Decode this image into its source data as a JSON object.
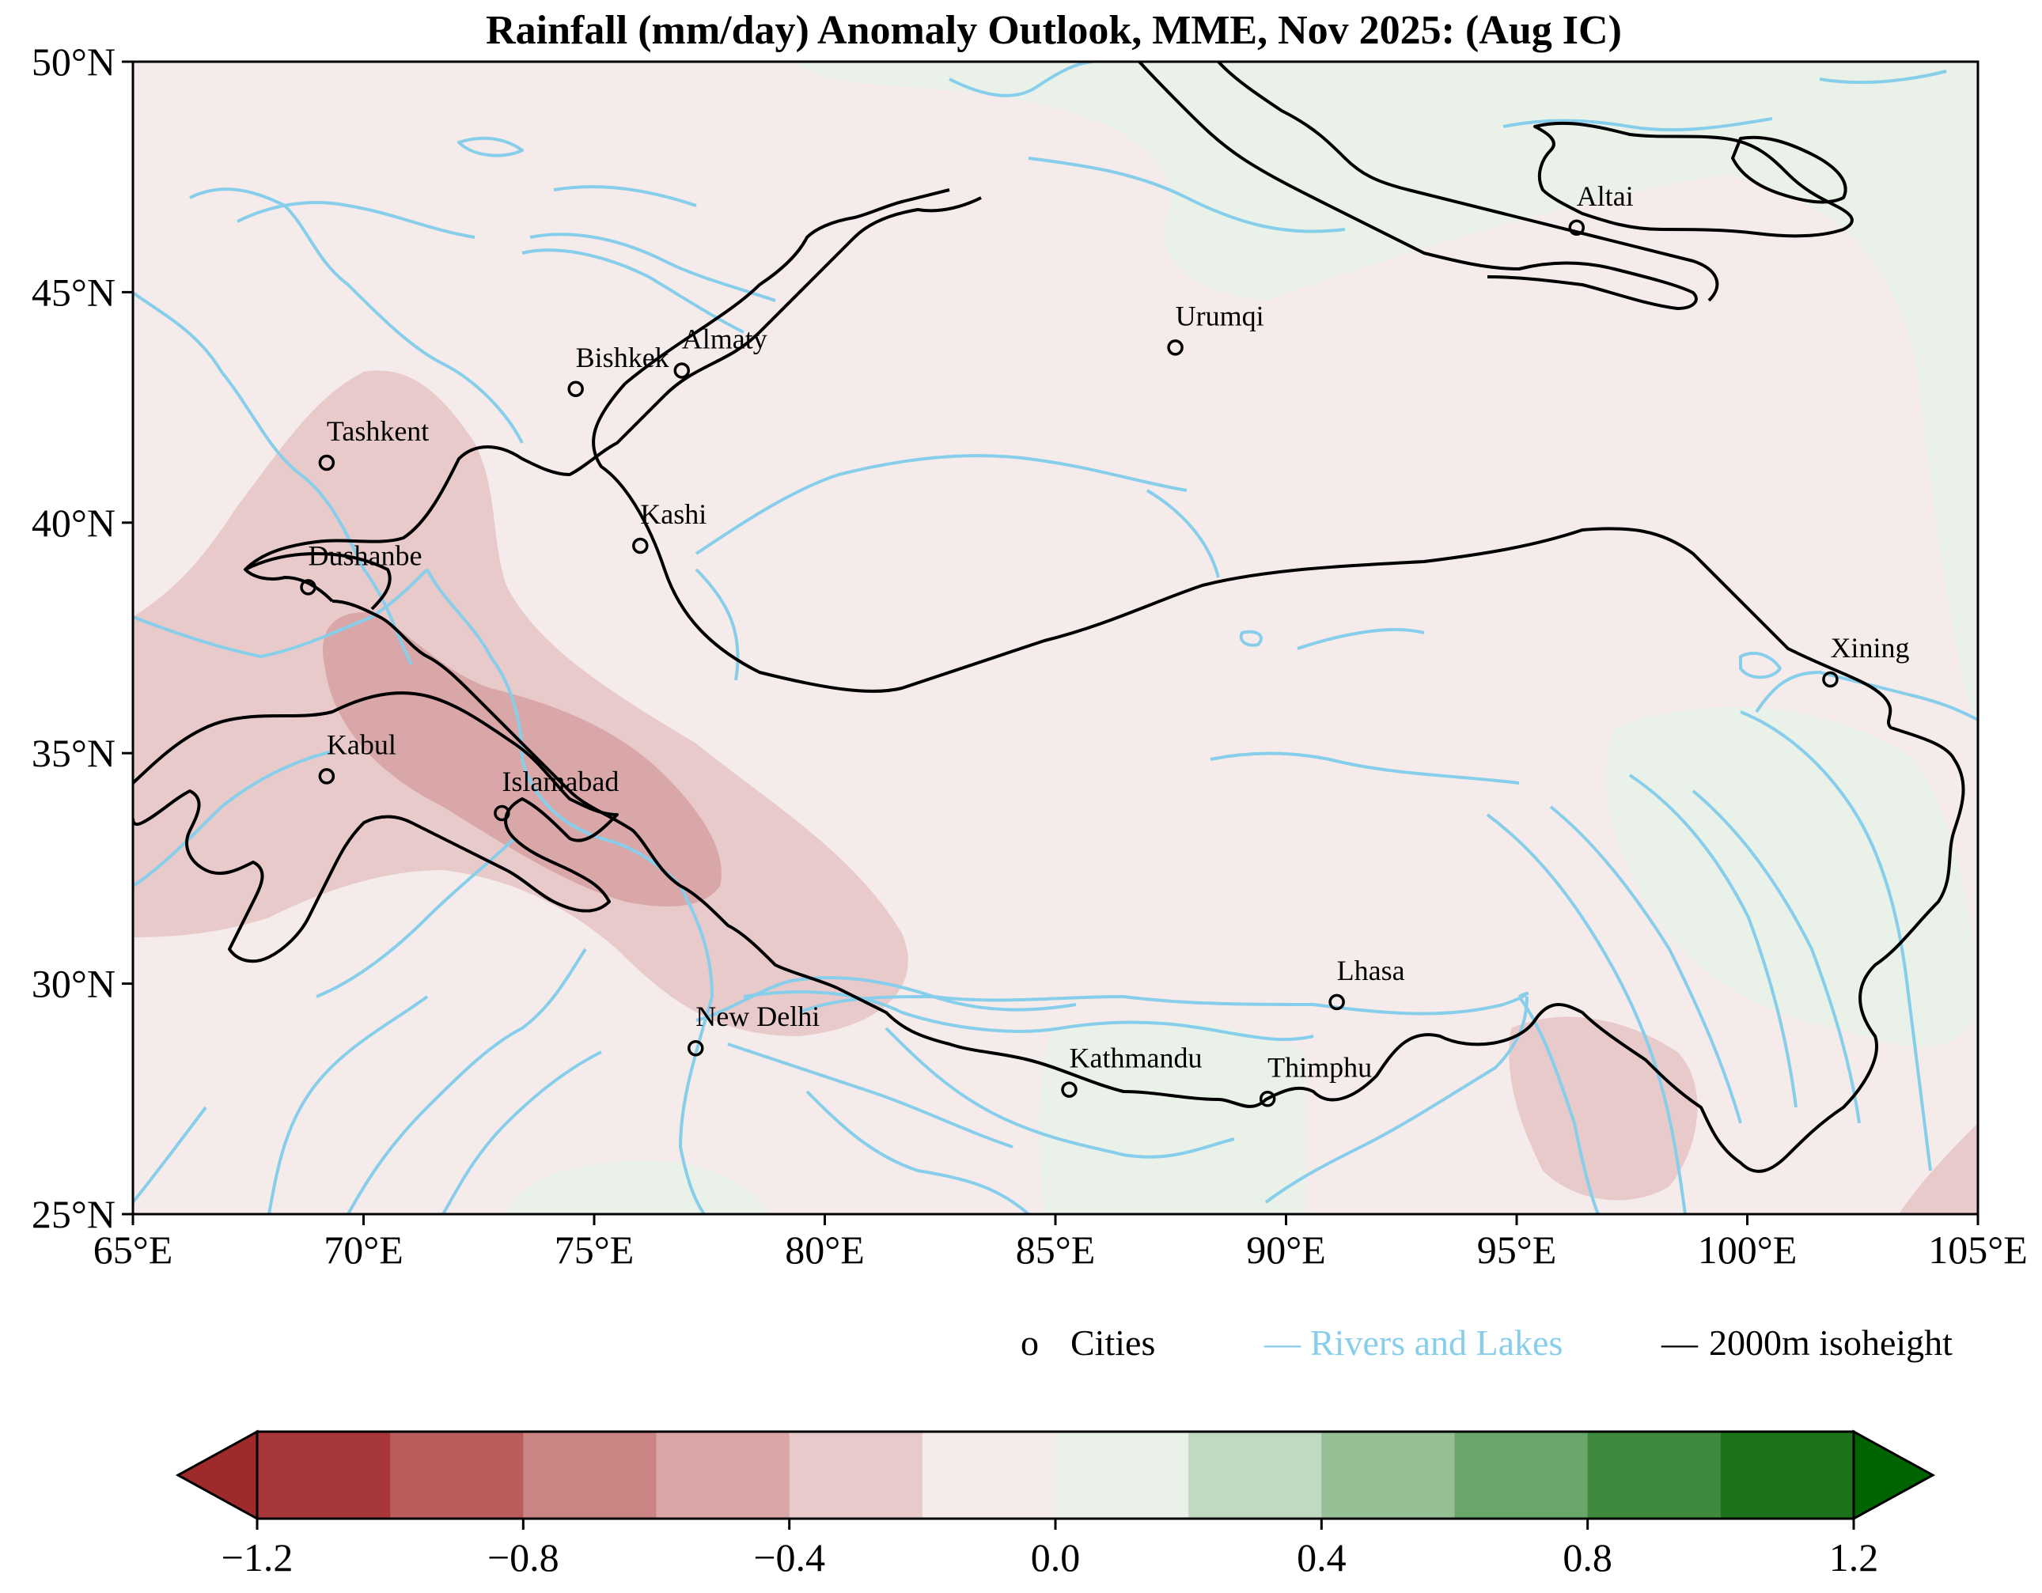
{
  "title": "Rainfall (mm/day) Anomaly Outlook, MME, Nov  2025:  (Aug IC)",
  "map": {
    "lon_range": [
      65,
      105
    ],
    "lat_range": [
      25,
      50
    ],
    "x_ticks": [
      "65°E",
      "70°E",
      "75°E",
      "80°E",
      "85°E",
      "90°E",
      "95°E",
      "100°E",
      "105°E"
    ],
    "y_ticks": [
      "25°N",
      "30°N",
      "35°N",
      "40°N",
      "45°N",
      "50°N"
    ],
    "background_color": "#f5ebeb",
    "cities": [
      {
        "name": "Altai",
        "lon": 96.3,
        "lat": 46.4
      },
      {
        "name": "Urumqi",
        "lon": 87.6,
        "lat": 43.8
      },
      {
        "name": "Almaty",
        "lon": 76.9,
        "lat": 43.3
      },
      {
        "name": "Bishkek",
        "lon": 74.6,
        "lat": 42.9
      },
      {
        "name": "Tashkent",
        "lon": 69.2,
        "lat": 41.3
      },
      {
        "name": "Kashi",
        "lon": 76.0,
        "lat": 39.5
      },
      {
        "name": "Dushanbe",
        "lon": 68.8,
        "lat": 38.6
      },
      {
        "name": "Xining",
        "lon": 101.8,
        "lat": 36.6
      },
      {
        "name": "Kabul",
        "lon": 69.2,
        "lat": 34.5
      },
      {
        "name": "Islamabad",
        "lon": 73.0,
        "lat": 33.7
      },
      {
        "name": "Lhasa",
        "lon": 91.1,
        "lat": 29.6
      },
      {
        "name": "New Delhi",
        "lon": 77.2,
        "lat": 28.6
      },
      {
        "name": "Kathmandu",
        "lon": 85.3,
        "lat": 27.7
      },
      {
        "name": "Thimphu",
        "lon": 89.6,
        "lat": 27.5
      }
    ]
  },
  "legend": {
    "cities_marker": "o",
    "cities_label": "Cities",
    "rivers_marker": "—",
    "rivers_label": "Rivers and Lakes",
    "rivers_color": "#87ceeb",
    "isoheight_marker": "—",
    "isoheight_label": "2000m isoheight"
  },
  "colorbar": {
    "ticks": [
      "−1.2",
      "−0.8",
      "−0.4",
      "0.0",
      "0.4",
      "0.8",
      "1.2"
    ],
    "colors": [
      "#a8373a",
      "#b95d5c",
      "#ca8484",
      "#d9a7a7",
      "#e8cacb",
      "#f5ebeb",
      "#e9f1e9",
      "#c0d9c0",
      "#96bf95",
      "#6aa56a",
      "#3f8a3e",
      "#1a721a"
    ],
    "under_color": "#9e2a2b",
    "over_color": "#006400"
  }
}
